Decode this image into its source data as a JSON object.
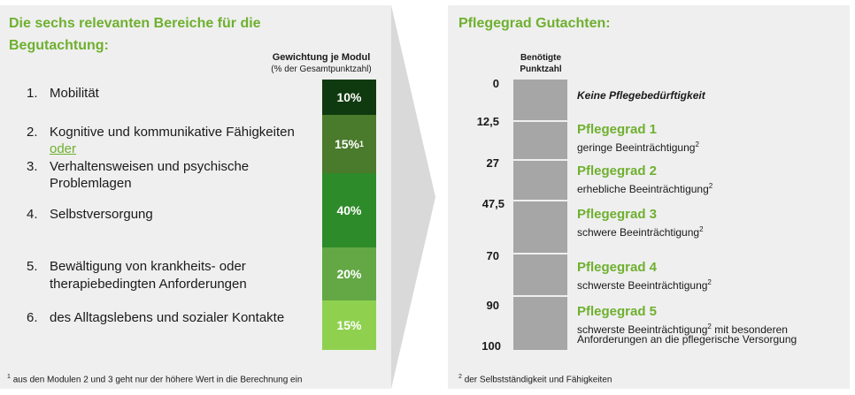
{
  "left": {
    "title_line1": "Die sechs relevanten Bereiche für die",
    "title_line2": "Begutachtung:",
    "weight_header_line1": "Gewichtung je Modul",
    "weight_header_line2": "(% der Gesamtpunktzahl)",
    "modules": [
      {
        "num": "1.",
        "line1": "Mobilität"
      },
      {
        "num": "2.",
        "line1": "Kognitive und kommunikative Fähigkeiten",
        "or": "oder"
      },
      {
        "num": "3.",
        "line1": "Verhaltensweisen und psychische",
        "line2": "Problemlagen"
      },
      {
        "num": "4.",
        "line1": "Selbstversorgung"
      },
      {
        "num": "5.",
        "line1": "Bewältigung von krankheits- oder",
        "line2": "therapiebedingten Anforderungen"
      },
      {
        "num": "6.",
        "line1": "des Alltagslebens und sozialer Kontakte"
      }
    ],
    "weights": [
      {
        "label": "10%",
        "color": "#0f3a0f"
      },
      {
        "label": "15%",
        "sup": "1",
        "color": "#4a7a2c"
      },
      {
        "label": "40%",
        "color": "#2e8b2a"
      },
      {
        "label": "20%",
        "color": "#63a845"
      },
      {
        "label": "15%",
        "color": "#8fd14f"
      }
    ],
    "footnote_mark": "1",
    "footnote": "aus den Modulen 2 und 3 geht nur der höhere Wert in die Berechnung ein"
  },
  "right": {
    "title": "Pflegegrad Gutachten:",
    "points_header_line1": "Benötigte",
    "points_header_line2": "Punktzahl",
    "thresholds": [
      "0",
      "12,5",
      "27",
      "47,5",
      "70",
      "90",
      "100"
    ],
    "none_label": "Keine Pflegebedürftigkeit",
    "grades": [
      {
        "title": "Pflegegrad 1",
        "desc": "geringe Beeinträchtigung",
        "sup": "2"
      },
      {
        "title": "Pflegegrad 2",
        "desc": "erhebliche Beeinträchtigung",
        "sup": "2"
      },
      {
        "title": "Pflegegrad 3",
        "desc": "schwere Beeinträchtigung",
        "sup": "2"
      },
      {
        "title": "Pflegegrad 4",
        "desc": "schwerste Beeinträchtigung",
        "sup": "2"
      },
      {
        "title": "Pflegegrad 5",
        "desc": "schwerste Beeinträchtigung",
        "sup": "2",
        "desc_cont": " mit besonderen",
        "desc_line2": "Anforderungen an die pflegerische Versorgung"
      }
    ],
    "footnote_mark": "2",
    "footnote": "der Selbstständigkeit und Fähigkeiten"
  },
  "colors": {
    "accent_green": "#6fb02f",
    "panel_bg": "#efefef",
    "bar_gray": "#a6a6a6"
  }
}
